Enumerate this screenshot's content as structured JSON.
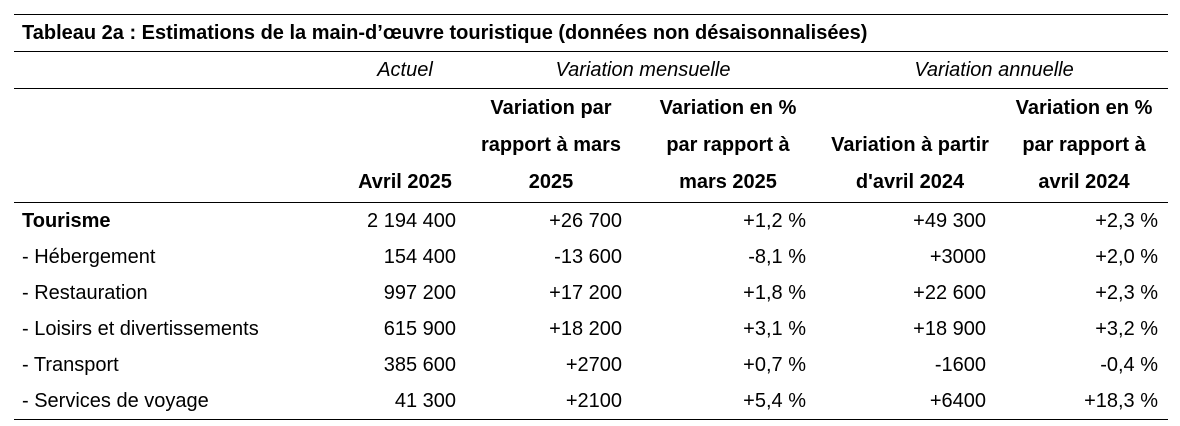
{
  "table": {
    "title": "Tableau 2a : Estimations de la main-d’œuvre touristique (données non désaisonnalisées)",
    "groups": {
      "actuel": "Actuel",
      "mensuelle": "Variation mensuelle",
      "annuelle": "Variation annuelle"
    },
    "headers": {
      "col1": "Avril 2025",
      "col2": "Variation par rapport à mars 2025",
      "col3": "Variation en % par rapport à mars 2025",
      "col4": "Variation à partir d'avril 2024",
      "col5": "Variation en % par rapport à avril 2024"
    },
    "rows": [
      {
        "label": "Tourisme",
        "avril_2025": "2 194 400",
        "var_mars": "+26 700",
        "pct_mars": "+1,2 %",
        "var_avril_2024": "+49 300",
        "pct_avril_2024": "+2,3 %"
      },
      {
        "label": "- Hébergement",
        "avril_2025": "154 400",
        "var_mars": "-13 600",
        "pct_mars": "-8,1 %",
        "var_avril_2024": "+3000",
        "pct_avril_2024": "+2,0 %"
      },
      {
        "label": "- Restauration",
        "avril_2025": "997 200",
        "var_mars": "+17 200",
        "pct_mars": "+1,8 %",
        "var_avril_2024": "+22 600",
        "pct_avril_2024": "+2,3 %"
      },
      {
        "label": "- Loisirs et divertissements",
        "avril_2025": "615 900",
        "var_mars": "+18 200",
        "pct_mars": "+3,1 %",
        "var_avril_2024": "+18 900",
        "pct_avril_2024": "+3,2 %"
      },
      {
        "label": "- Transport",
        "avril_2025": "385 600",
        "var_mars": "+2700",
        "pct_mars": "+0,7 %",
        "var_avril_2024": "-1600",
        "pct_avril_2024": "-0,4 %"
      },
      {
        "label": "- Services de voyage",
        "avril_2025": "41 300",
        "var_mars": "+2100",
        "pct_mars": "+5,4 %",
        "var_avril_2024": "+6400",
        "pct_avril_2024": "+18,3 %"
      }
    ]
  }
}
